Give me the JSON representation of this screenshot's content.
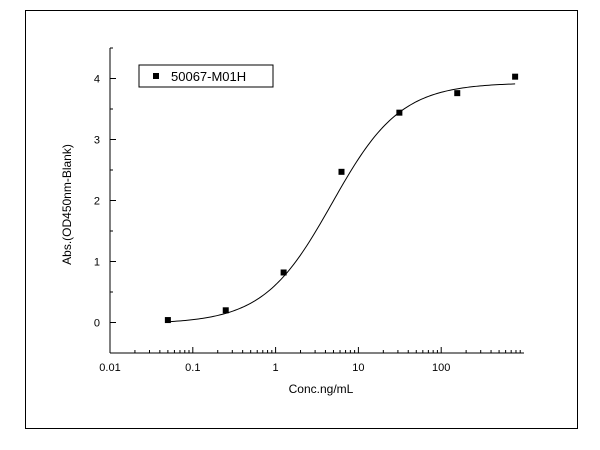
{
  "chart_data": {
    "type": "scatter",
    "title": "",
    "xlabel": "Conc.ng/mL",
    "ylabel": "Abs.(OD450nm-Blank)",
    "x_scale": "log",
    "xlim": [
      0.01,
      1000
    ],
    "ylim": [
      -0.5,
      4.5
    ],
    "x_ticks": [
      {
        "value": 0.01,
        "label": "0.01"
      },
      {
        "value": 0.1,
        "label": "0.1"
      },
      {
        "value": 1,
        "label": "1"
      },
      {
        "value": 10,
        "label": "10"
      },
      {
        "value": 100,
        "label": "100"
      }
    ],
    "y_ticks": [
      {
        "value": 0,
        "label": "0"
      },
      {
        "value": 1,
        "label": "1"
      },
      {
        "value": 2,
        "label": "2"
      },
      {
        "value": 3,
        "label": "3"
      },
      {
        "value": 4,
        "label": "4"
      }
    ],
    "grid": false,
    "legend_position": "top-left",
    "series": [
      {
        "name": "50067-M01H",
        "marker": "square",
        "color": "#000000",
        "x": [
          0.05,
          0.25,
          1.25,
          6.25,
          31.25,
          156.25,
          781.25
        ],
        "y": [
          0.04,
          0.2,
          0.82,
          2.47,
          3.44,
          3.76,
          4.03
        ]
      }
    ],
    "fit_curve": {
      "model": "4PL",
      "color": "#000000",
      "bottom": -0.02,
      "top": 3.93,
      "ec50": 4.8,
      "hill": 1.05
    }
  }
}
